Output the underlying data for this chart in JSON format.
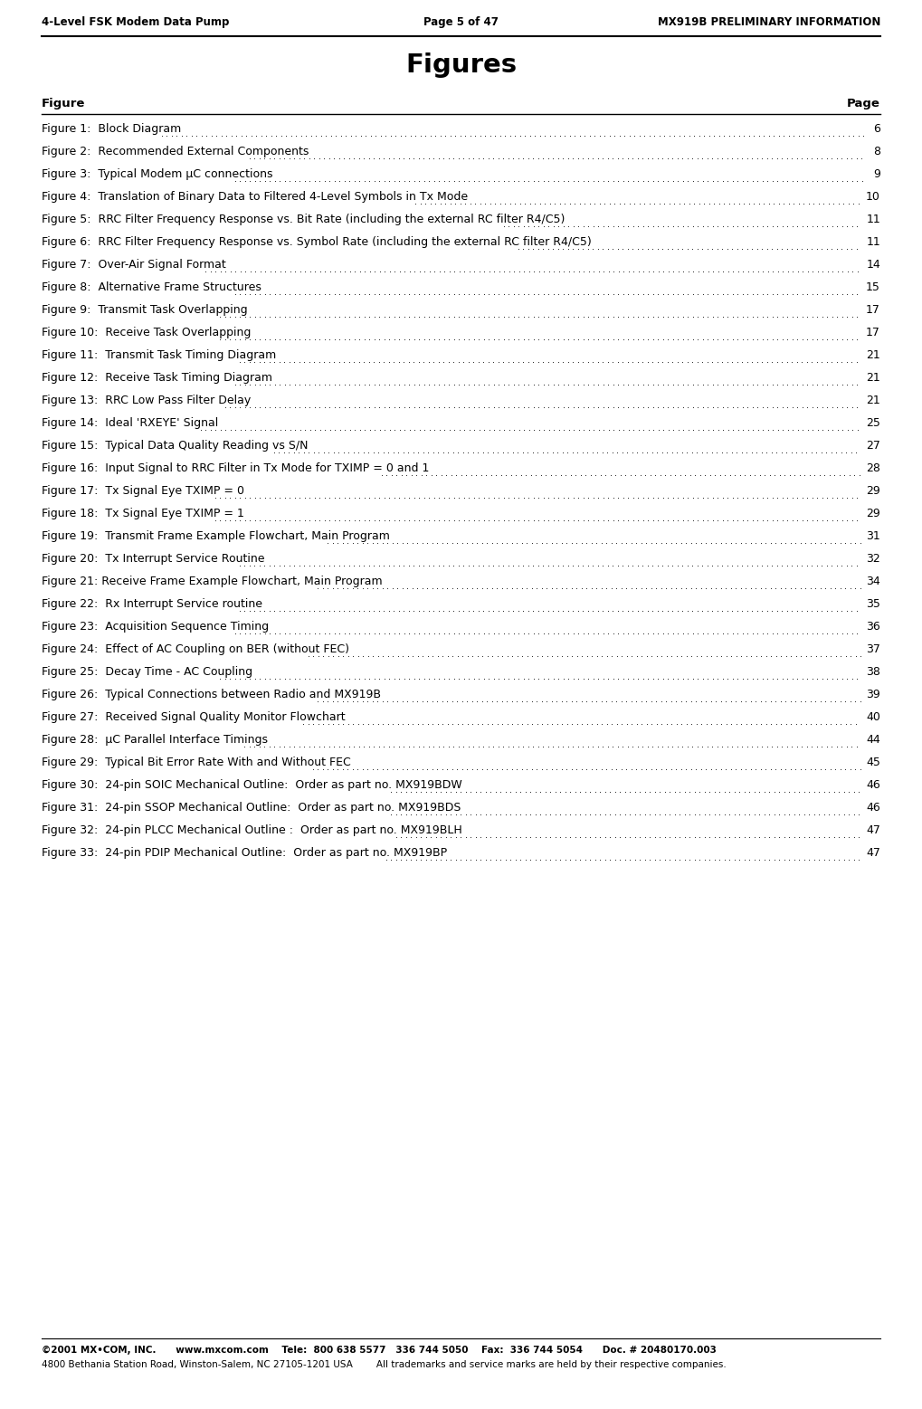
{
  "header_left": "4-Level FSK Modem Data Pump",
  "header_center": "Page 5 of 47",
  "header_right": "MX919B PRELIMINARY INFORMATION",
  "title": "Figures",
  "col_figure": "Figure",
  "col_page": "Page",
  "figures": [
    [
      "Figure 1:  ",
      "Block Diagram",
      "6"
    ],
    [
      "Figure 2:  ",
      "Recommended External Components",
      "8"
    ],
    [
      "Figure 3:  ",
      "Typical Modem μC connections",
      "9"
    ],
    [
      "Figure 4:  ",
      "Translation of Binary Data to Filtered 4-Level Symbols in Tx Mode",
      "10"
    ],
    [
      "Figure 5:  ",
      "RRC Filter Frequency Response vs. Bit Rate (including the external RC filter R4/C5)",
      "11"
    ],
    [
      "Figure 6:  ",
      "RRC Filter Frequency Response vs. Symbol Rate (including the external RC filter R4/C5)",
      "11"
    ],
    [
      "Figure 7:  ",
      "Over-Air Signal Format",
      "14"
    ],
    [
      "Figure 8:  ",
      "Alternative Frame Structures",
      "15"
    ],
    [
      "Figure 9:  ",
      "Transmit Task Overlapping",
      "17"
    ],
    [
      "Figure 10:  ",
      "Receive Task Overlapping",
      "17"
    ],
    [
      "Figure 11:  ",
      "Transmit Task Timing Diagram",
      "21"
    ],
    [
      "Figure 12:  ",
      "Receive Task Timing Diagram",
      "21"
    ],
    [
      "Figure 13:  ",
      "RRC Low Pass Filter Delay",
      "21"
    ],
    [
      "Figure 14:  ",
      "Ideal 'RXEYE' Signal",
      "25"
    ],
    [
      "Figure 15:  ",
      "Typical Data Quality Reading vs S/N",
      "27"
    ],
    [
      "Figure 16:  ",
      "Input Signal to RRC Filter in Tx Mode for TXIMP = 0 and 1",
      "28"
    ],
    [
      "Figure 17:  ",
      "Tx Signal Eye TXIMP = 0",
      "29"
    ],
    [
      "Figure 18:  ",
      "Tx Signal Eye TXIMP = 1",
      "29"
    ],
    [
      "Figure 19:  ",
      "Transmit Frame Example Flowchart, Main Program",
      "31"
    ],
    [
      "Figure 20:  ",
      "Tx Interrupt Service Routine",
      "32"
    ],
    [
      "Figure 21: ",
      "Receive Frame Example Flowchart, Main Program",
      "34"
    ],
    [
      "Figure 22:  ",
      "Rx Interrupt Service routine",
      "35"
    ],
    [
      "Figure 23:  ",
      "Acquisition Sequence Timing",
      "36"
    ],
    [
      "Figure 24:  ",
      "Effect of AC Coupling on BER (without FEC)",
      "37"
    ],
    [
      "Figure 25:  ",
      "Decay Time - AC Coupling",
      "38"
    ],
    [
      "Figure 26:  ",
      "Typical Connections between Radio and MX919B",
      "39"
    ],
    [
      "Figure 27:  ",
      "Received Signal Quality Monitor Flowchart",
      "40"
    ],
    [
      "Figure 28:  ",
      "μC Parallel Interface Timings",
      "44"
    ],
    [
      "Figure 29:  ",
      "Typical Bit Error Rate With and Without FEC",
      "45"
    ],
    [
      "Figure 30:  ",
      "24-pin SOIC Mechanical Outline:  Order as part no. MX919BDW",
      "46"
    ],
    [
      "Figure 31:  ",
      "24-pin SSOP Mechanical Outline:  Order as part no. MX919BDS",
      "46"
    ],
    [
      "Figure 32:  ",
      "24-pin PLCC Mechanical Outline :  Order as part no. MX919BLH",
      "47"
    ],
    [
      "Figure 33:  ",
      "24-pin PDIP Mechanical Outline:  Order as part no. MX919BP",
      "47"
    ]
  ],
  "footer_line1": "©2001 MX•COM, INC.      www.mxcom.com    Tele:  800 638 5577   336 744 5050    Fax:  336 744 5054      Doc. # 20480170.003",
  "footer_line2": "4800 Bethania Station Road, Winston-Salem, NC 27105-1201 USA        All trademarks and service marks are held by their respective companies.",
  "background_color": "#ffffff",
  "text_color": "#000000",
  "header_fontsize": 8.5,
  "title_fontsize": 21,
  "col_header_fontsize": 9.5,
  "entry_fontsize": 9.0,
  "footer_fontsize": 7.5
}
